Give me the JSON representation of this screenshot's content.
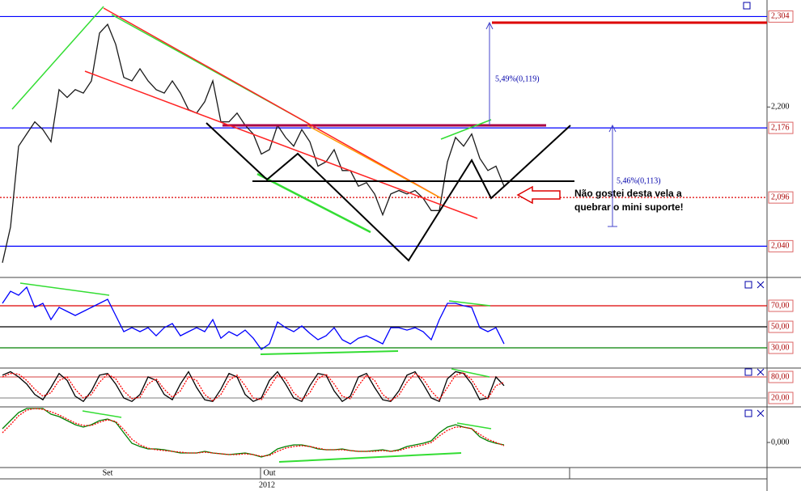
{
  "chart_data": [
    {
      "type": "line",
      "categories": [
        null,
        null,
        null,
        null,
        null,
        null,
        null,
        null,
        null,
        null,
        null,
        null,
        null,
        "Set",
        null,
        null,
        null,
        null,
        null,
        null,
        null,
        null,
        null,
        null,
        null,
        null,
        null,
        null,
        null,
        null,
        null,
        null,
        null,
        "Out",
        null,
        null,
        null,
        null,
        null,
        null,
        null,
        null,
        null,
        null,
        null,
        null,
        null,
        null,
        null,
        null,
        null,
        null,
        null,
        null,
        null,
        null,
        null,
        null,
        null,
        null,
        null,
        null,
        null
      ],
      "x_group_label": "2012",
      "series": [
        {
          "color": "#1a1a1a",
          "values": [
            2.021,
            2.062,
            2.155,
            2.169,
            2.183,
            2.174,
            2.16,
            2.22,
            2.211,
            2.22,
            2.216,
            2.23,
            2.285,
            2.295,
            2.272,
            2.234,
            2.23,
            2.244,
            2.23,
            2.22,
            2.216,
            2.23,
            2.216,
            2.197,
            2.193,
            2.206,
            2.23,
            2.183,
            2.183,
            2.193,
            2.179,
            2.169,
            2.146,
            2.151,
            2.179,
            2.165,
            2.155,
            2.174,
            2.16,
            2.132,
            2.137,
            2.151,
            2.127,
            2.127,
            2.109,
            2.113,
            2.1,
            2.076,
            2.1,
            2.104,
            2.1,
            2.104,
            2.095,
            2.081,
            2.081,
            2.137,
            2.165,
            2.155,
            2.169,
            2.141,
            2.127,
            2.132,
            2.109
          ]
        }
      ],
      "ylim": [
        2.005,
        2.323
      ],
      "yticks": [
        {
          "value": 2.04,
          "label": "2,040"
        },
        {
          "value": 2.096,
          "label": "2,096"
        },
        {
          "value": 2.176,
          "label": "2,176"
        },
        {
          "value": 2.2,
          "label": "2,200"
        },
        {
          "value": 2.304,
          "label": "2,304"
        }
      ],
      "grid_colors": [
        "#0000ff",
        "#dd0000",
        "#0000ff",
        "none",
        "#0000ff"
      ],
      "annotations": [
        "5,49%(0,119)",
        "5,46%(0,113)"
      ],
      "comment": [
        "Não gostei desta vela a",
        "quebrar o mini suporte!"
      ]
    },
    {
      "type": "line",
      "series": [
        {
          "color": "#0000ff",
          "values": [
            72.3,
            83.8,
            80,
            87.7,
            68.5,
            72.3,
            56.9,
            68.5,
            64.6,
            60.8,
            64.6,
            68.5,
            72.3,
            76.2,
            60.8,
            45.4,
            49.2,
            45.4,
            49.2,
            41.5,
            49.2,
            53.1,
            41.5,
            45.4,
            49.2,
            45.4,
            56.9,
            39.2,
            45.4,
            41.5,
            46.9,
            39.2,
            28.5,
            33.8,
            54.6,
            49.2,
            45.4,
            50.8,
            43.8,
            37.7,
            41.5,
            49.2,
            37.7,
            33.8,
            39.2,
            41.5,
            37.7,
            33.8,
            49.2,
            49.2,
            46.9,
            49.2,
            45.4,
            37.7,
            56.9,
            72.3,
            72.3,
            70,
            68.5,
            49.2,
            45.4,
            49.2,
            33.8
          ]
        }
      ],
      "ylim": [
        10.8,
        95.4
      ],
      "yticks": [
        {
          "value": 30,
          "label": "30,00"
        },
        {
          "value": 50,
          "label": "50,00"
        },
        {
          "value": 70,
          "label": "70,00"
        }
      ],
      "grid_colors": [
        "#008000",
        "#000000",
        "#dd0000"
      ]
    },
    {
      "type": "line",
      "series": [
        {
          "color": "#000000",
          "values": [
            85,
            95,
            80,
            60,
            30,
            15,
            50,
            90,
            70,
            25,
            10,
            40,
            85,
            90,
            60,
            20,
            10,
            30,
            80,
            70,
            30,
            15,
            60,
            95,
            50,
            15,
            10,
            45,
            90,
            80,
            30,
            10,
            20,
            70,
            95,
            60,
            20,
            10,
            55,
            90,
            85,
            40,
            10,
            25,
            80,
            90,
            50,
            15,
            10,
            40,
            85,
            95,
            60,
            20,
            10,
            75,
            95,
            90,
            60,
            15,
            20,
            80,
            55
          ]
        },
        {
          "color": "#ff0000",
          "dashed": true,
          "values": [
            80,
            90,
            88,
            70,
            45,
            25,
            35,
            70,
            80,
            45,
            20,
            30,
            65,
            88,
            75,
            40,
            18,
            22,
            60,
            75,
            45,
            22,
            40,
            80,
            70,
            30,
            12,
            30,
            70,
            85,
            55,
            20,
            15,
            50,
            85,
            75,
            35,
            15,
            35,
            75,
            88,
            60,
            25,
            18,
            55,
            85,
            70,
            30,
            12,
            28,
            65,
            90,
            75,
            40,
            15,
            50,
            85,
            92,
            72,
            35,
            18,
            55,
            65
          ]
        }
      ],
      "ylim": [
        -5.4,
        105.4
      ],
      "yticks": [
        {
          "value": 20,
          "label": "20,00"
        },
        {
          "value": 80,
          "label": "80,00"
        }
      ],
      "grid_colors": [
        "#999999",
        "#dd6666"
      ]
    },
    {
      "type": "line",
      "series": [
        {
          "color": "#008000",
          "values": [
            0.017,
            0.027,
            0.037,
            0.042,
            0.042,
            0.042,
            0.035,
            0.032,
            0.027,
            0.022,
            0.019,
            0.022,
            0.027,
            0.029,
            0.025,
            0.012,
            -0.001,
            -0.005,
            -0.008,
            -0.008,
            -0.009,
            -0.011,
            -0.013,
            -0.013,
            -0.013,
            -0.011,
            -0.013,
            -0.014,
            -0.015,
            -0.014,
            -0.013,
            -0.015,
            -0.018,
            -0.015,
            -0.008,
            -0.005,
            -0.003,
            -0.003,
            -0.005,
            -0.008,
            -0.009,
            -0.009,
            -0.008,
            -0.01,
            -0.011,
            -0.011,
            -0.01,
            -0.009,
            -0.011,
            -0.009,
            -0.005,
            -0.003,
            -0.001,
            0.002,
            0.012,
            0.019,
            0.022,
            0.019,
            0.017,
            0.007,
            0.002,
            -0.001,
            -0.003
          ]
        },
        {
          "color": "#ff0000",
          "dashed": true,
          "values": [
            0.012,
            0.022,
            0.033,
            0.04,
            0.042,
            0.041,
            0.038,
            0.034,
            0.029,
            0.024,
            0.021,
            0.021,
            0.025,
            0.028,
            0.026,
            0.016,
            0.004,
            -0.003,
            -0.007,
            -0.009,
            -0.01,
            -0.011,
            -0.012,
            -0.013,
            -0.013,
            -0.012,
            -0.013,
            -0.014,
            -0.015,
            -0.015,
            -0.014,
            -0.015,
            -0.017,
            -0.016,
            -0.011,
            -0.007,
            -0.005,
            -0.004,
            -0.005,
            -0.007,
            -0.009,
            -0.009,
            -0.009,
            -0.01,
            -0.011,
            -0.011,
            -0.011,
            -0.01,
            -0.011,
            -0.01,
            -0.007,
            -0.005,
            -0.003,
            0.0,
            0.008,
            0.015,
            0.019,
            0.019,
            0.017,
            0.01,
            0.004,
            0.0,
            -0.004
          ]
        }
      ],
      "ylim": [
        -0.031,
        0.044
      ],
      "yticks": [
        {
          "value": 0,
          "label": "0,000"
        }
      ],
      "grid_colors": [
        "none"
      ]
    }
  ]
}
